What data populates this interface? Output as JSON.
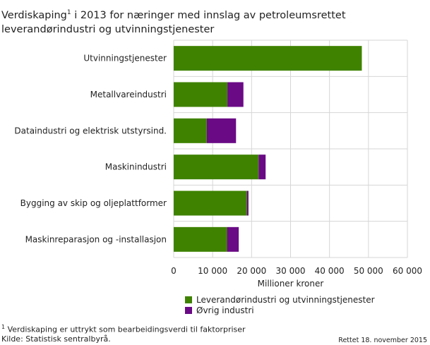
{
  "chart_data": {
    "type": "bar",
    "orientation": "horizontal",
    "stacked": true,
    "title_main": "Verdiskaping",
    "title_sup": "1",
    "title_rest": " i 2013 for næringer med innslag av petroleumsrettet leverandørindustri og utvinningstjenester",
    "categories": [
      "Utvinningstjenester",
      "Metallvareindustri",
      "Dataindustri og elektrisk utstyrsind.",
      "Maskinindustri",
      "Bygging av skip og oljeplattformer",
      "Maskinreparasjon og -installasjon"
    ],
    "series": [
      {
        "name": "Leverandørindustri og utvinningstjenester",
        "color": "#3f8200",
        "values": [
          48300,
          13800,
          8500,
          21800,
          18800,
          13700
        ]
      },
      {
        "name": "Øvrig industri",
        "color": "#6a0a85",
        "values": [
          0,
          4100,
          7500,
          1800,
          400,
          3000
        ]
      }
    ],
    "xlabel": "Millioner kroner",
    "xlim": [
      0,
      60000
    ],
    "xticks": [
      0,
      10000,
      20000,
      30000,
      40000,
      50000,
      60000
    ],
    "xtick_labels": [
      "0",
      "10 000",
      "20 000",
      "30 000",
      "40 000",
      "50 000",
      "60 000"
    ],
    "grid": true,
    "legend_placement": "bottom"
  },
  "footnote": {
    "sup": "1",
    "text": " Verdiskaping er uttrykt som bearbeidingsverdi til faktorpriser"
  },
  "source": "Kilde: Statistisk sentralbyrå.",
  "corrected": "Rettet 18. november 2015"
}
